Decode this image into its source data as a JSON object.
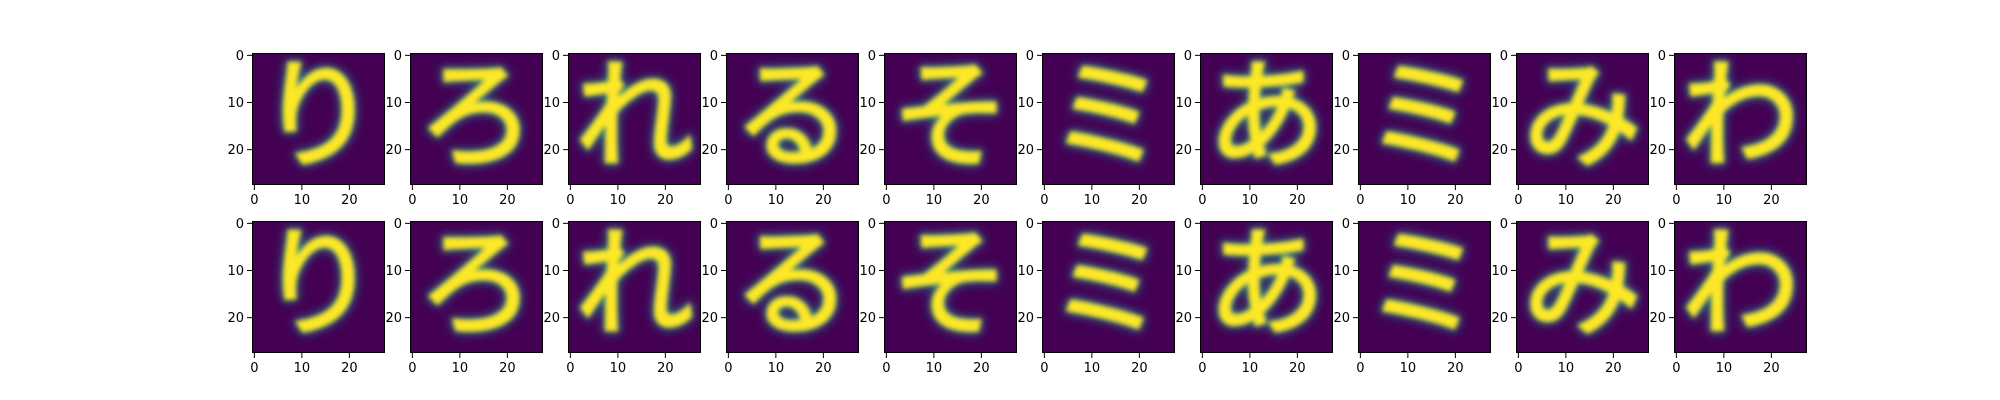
{
  "chart_data": {
    "type": "heatmap",
    "description_free": true,
    "colormap": [
      "#440154",
      "#3b528b",
      "#21918c",
      "#5ec962",
      "#fde725"
    ],
    "grid": false,
    "rows": 2,
    "cols": 10,
    "image_size": [
      28,
      28
    ],
    "xlim": [
      0,
      27
    ],
    "ylim": [
      27,
      0
    ],
    "xticks": [
      "0",
      "10",
      "20"
    ],
    "yticks": [
      "0",
      "10",
      "20"
    ],
    "row_labels": [
      "",
      ""
    ],
    "glyphs": [
      "り",
      "ろ",
      "れ",
      "る",
      "そ",
      "ミ",
      "あ",
      "ミ",
      "み",
      "わ"
    ]
  }
}
